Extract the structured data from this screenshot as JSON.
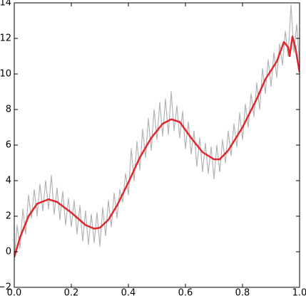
{
  "chart_data": {
    "type": "line",
    "xlim": [
      0,
      1
    ],
    "ylim": [
      -2,
      14
    ],
    "xticks": [
      {
        "value": 0,
        "label": "0.0"
      },
      {
        "value": 0.2,
        "label": "0.2"
      },
      {
        "value": 0.4,
        "label": "0.4"
      },
      {
        "value": 0.6,
        "label": "0.6"
      },
      {
        "value": 0.8,
        "label": "0.8"
      },
      {
        "value": 1,
        "label": "1.0"
      }
    ],
    "yticks": [
      {
        "value": -2,
        "label": "−2"
      },
      0,
      2,
      4,
      6,
      8,
      10,
      12,
      14
    ],
    "grid": false,
    "series": [
      {
        "color": "#b3b3b3",
        "x": [
          0,
          0.01,
          0.02,
          0.03,
          0.04,
          0.05,
          0.06,
          0.07,
          0.08,
          0.09,
          0.1,
          0.11,
          0.12,
          0.13,
          0.14,
          0.15,
          0.16,
          0.17,
          0.18,
          0.19,
          0.2,
          0.21,
          0.22,
          0.23,
          0.24,
          0.25,
          0.26,
          0.27,
          0.28,
          0.29,
          0.3,
          0.31,
          0.32,
          0.33,
          0.34,
          0.35,
          0.36,
          0.37,
          0.38,
          0.39,
          0.4,
          0.41,
          0.42,
          0.43,
          0.44,
          0.45,
          0.46,
          0.47,
          0.48,
          0.49,
          0.5,
          0.51,
          0.52,
          0.53,
          0.54,
          0.55,
          0.56,
          0.57,
          0.58,
          0.59,
          0.6,
          0.61,
          0.62,
          0.63,
          0.64,
          0.65,
          0.66,
          0.67,
          0.68,
          0.69,
          0.7,
          0.71,
          0.72,
          0.73,
          0.74,
          0.75,
          0.76,
          0.77,
          0.78,
          0.79,
          0.8,
          0.81,
          0.82,
          0.83,
          0.84,
          0.85,
          0.86,
          0.87,
          0.88,
          0.89,
          0.9,
          0.91,
          0.92,
          0.93,
          0.94,
          0.95,
          0.96,
          0.97,
          0.98,
          0.99,
          1
        ],
        "values": [
          -0.5,
          1.5,
          0.2,
          2.4,
          1.0,
          3.2,
          1.9,
          3.5,
          2.0,
          3.8,
          2.3,
          4.0,
          2.4,
          4.3,
          2.1,
          3.6,
          1.8,
          3.4,
          1.5,
          3.0,
          1.4,
          2.9,
          1.0,
          2.6,
          0.6,
          2.3,
          0.4,
          2.1,
          0.5,
          2.2,
          0.3,
          2.5,
          0.9,
          2.9,
          1.4,
          3.3,
          1.9,
          3.5,
          2.8,
          4.4,
          3.2,
          5.8,
          4.0,
          6.2,
          4.6,
          6.9,
          5.3,
          7.5,
          5.7,
          8.0,
          6.3,
          8.4,
          6.5,
          8.6,
          6.6,
          9.0,
          6.8,
          8.2,
          6.4,
          7.9,
          5.8,
          7.3,
          5.5,
          6.8,
          4.8,
          6.4,
          4.5,
          6.1,
          4.4,
          5.9,
          4.1,
          6.0,
          4.5,
          6.3,
          5.0,
          6.8,
          5.4,
          7.2,
          5.9,
          7.8,
          6.3,
          8.3,
          7.0,
          8.9,
          7.6,
          9.5,
          8.0,
          10.3,
          8.9,
          10.8,
          9.3,
          11.2,
          9.8,
          11.7,
          10.5,
          12.4,
          11.0,
          13.9,
          11.2,
          12.8,
          10.5
        ]
      },
      {
        "color": "#e0262e",
        "x": [
          0,
          0.02,
          0.05,
          0.08,
          0.12,
          0.15,
          0.2,
          0.25,
          0.28,
          0.3,
          0.33,
          0.36,
          0.4,
          0.44,
          0.48,
          0.52,
          0.55,
          0.58,
          0.62,
          0.66,
          0.7,
          0.72,
          0.75,
          0.8,
          0.85,
          0.88,
          0.9,
          0.92,
          0.945,
          0.96,
          0.965,
          0.975,
          0.985,
          1
        ],
        "values": [
          -0.3,
          0.8,
          2.0,
          2.7,
          2.95,
          2.8,
          2.2,
          1.5,
          1.3,
          1.35,
          1.8,
          2.6,
          3.9,
          5.3,
          6.4,
          7.2,
          7.45,
          7.3,
          6.4,
          5.6,
          5.2,
          5.2,
          5.7,
          7.0,
          8.6,
          9.7,
          10.2,
          10.7,
          11.8,
          11.5,
          11.0,
          12.1,
          11.5,
          10.1
        ]
      }
    ]
  }
}
